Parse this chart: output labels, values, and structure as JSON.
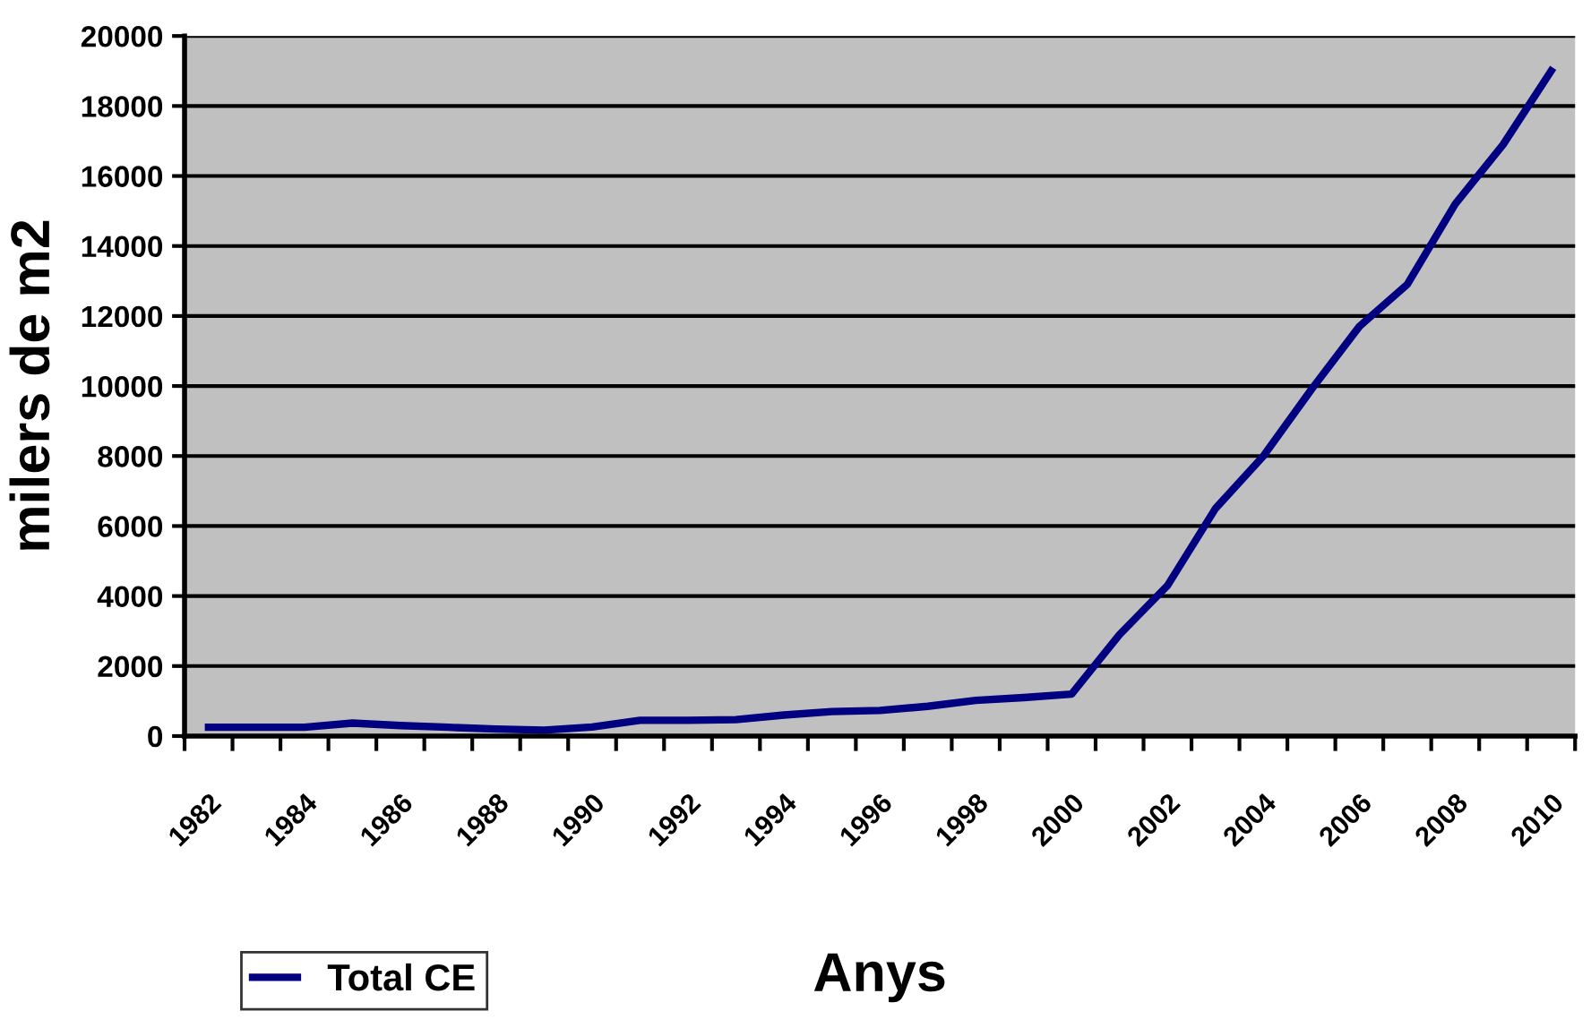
{
  "chart_data": {
    "type": "line",
    "xlabel": "Anys",
    "ylabel": "milers de m2",
    "categories": [
      "1982",
      null,
      "1984",
      null,
      "1986",
      null,
      "1988",
      null,
      "1990",
      null,
      "1992",
      null,
      "1994",
      null,
      "1996",
      null,
      "1998",
      null,
      "2000",
      null,
      "2002",
      null,
      "2004",
      null,
      "2006",
      null,
      "2008",
      null,
      "2010"
    ],
    "series": [
      {
        "name": "Total CE",
        "color": "#000080",
        "values": [
          250,
          250,
          250,
          370,
          300,
          250,
          200,
          170,
          260,
          450,
          450,
          470,
          600,
          700,
          730,
          850,
          1020,
          1100,
          1200,
          2900,
          4300,
          6500,
          8000,
          9900,
          11700,
          12900,
          15200,
          16900,
          19000
        ]
      }
    ],
    "ylim": [
      0,
      20000
    ],
    "yticks": [
      0,
      2000,
      4000,
      6000,
      8000,
      10000,
      12000,
      14000,
      16000,
      18000,
      20000
    ],
    "grid": "y",
    "legend": "bottom left",
    "marker": "none",
    "line_style": "solid"
  }
}
